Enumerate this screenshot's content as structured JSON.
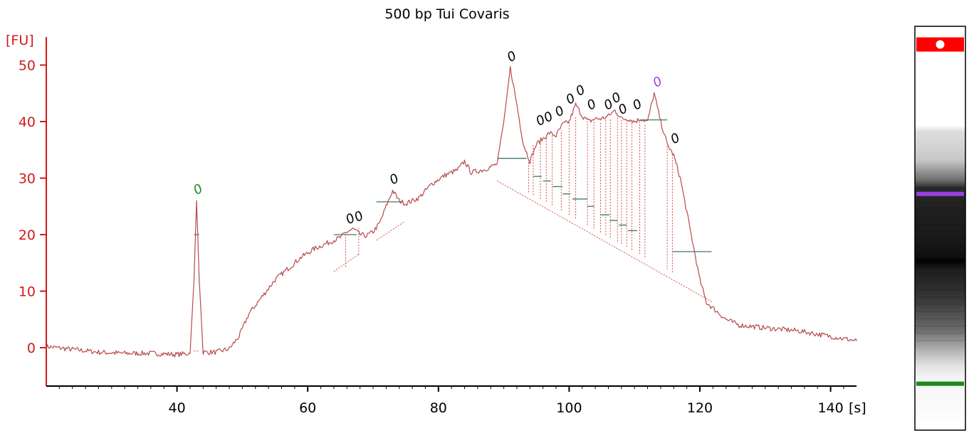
{
  "chart_data": {
    "type": "line",
    "title": "500 bp Tui Covaris",
    "xlabel": "[s]",
    "ylabel": "[FU]",
    "xlim": [
      20,
      144
    ],
    "ylim": [
      -7,
      55
    ],
    "x_ticks": [
      40,
      60,
      80,
      100,
      120,
      140
    ],
    "y_ticks": [
      0,
      10,
      20,
      30,
      40,
      50
    ],
    "grid": false,
    "colors": {
      "trace": "#b64a4a",
      "y_axis": "#d11a1a",
      "x_axis": "#000000",
      "baseline_dotted": "#d84a4a",
      "peak_level": "#3a7a6a",
      "marker_label_low": "#1a8a1a",
      "marker_label_high": "#9b40e0",
      "label_default": "#000000"
    },
    "series": [
      {
        "x": [
          20,
          24,
          28,
          32,
          36,
          40,
          42,
          42.6,
          43.0,
          43.4,
          44,
          46,
          48,
          49.5,
          51,
          53,
          55,
          57,
          59,
          61,
          63,
          65,
          66,
          67,
          68,
          69,
          70,
          71,
          72,
          73,
          74,
          75,
          77,
          79,
          81,
          83,
          84,
          85,
          87,
          89,
          90,
          91,
          92,
          93,
          94,
          95,
          96,
          97,
          98,
          99,
          100,
          101,
          102,
          103,
          104,
          105,
          106,
          107,
          108,
          109,
          110,
          111,
          112,
          113,
          114,
          115,
          116,
          117,
          118,
          119,
          120,
          121,
          122,
          124,
          126,
          130,
          135,
          140,
          144
        ],
        "y": [
          0.2,
          -0.3,
          -0.8,
          -1.0,
          -1.0,
          -1.2,
          -1.0,
          12,
          26,
          12,
          -0.8,
          -0.8,
          -0.2,
          2,
          6,
          9,
          12,
          14,
          16,
          17.5,
          18.5,
          19.5,
          20.5,
          21,
          20,
          19.8,
          20.5,
          22,
          25,
          27.8,
          26,
          25.5,
          26.5,
          29,
          30.5,
          31.5,
          33,
          31,
          31.5,
          32.5,
          40,
          49.5,
          43,
          36,
          33,
          36,
          37,
          38,
          37.5,
          39.5,
          40,
          43,
          41,
          40,
          40.5,
          40.5,
          41,
          42,
          40.5,
          40.5,
          40,
          40.5,
          40,
          45,
          40,
          36,
          34,
          30,
          24,
          18,
          12,
          8,
          7,
          5,
          4,
          3.5,
          3,
          2,
          1.2
        ]
      }
    ],
    "peaks": [
      {
        "x": 43.0,
        "y": 26.0,
        "label": "0",
        "color": "#1a8a1a"
      },
      {
        "x": 66.3,
        "y": 20.8,
        "label": "0",
        "color": "#000000"
      },
      {
        "x": 67.6,
        "y": 21.2,
        "label": "0",
        "color": "#000000"
      },
      {
        "x": 73.0,
        "y": 27.8,
        "label": "0",
        "color": "#000000"
      },
      {
        "x": 91.0,
        "y": 49.5,
        "label": "0",
        "color": "#000000"
      },
      {
        "x": 95.4,
        "y": 38.2,
        "label": "0",
        "color": "#000000"
      },
      {
        "x": 96.6,
        "y": 38.8,
        "label": "0",
        "color": "#000000"
      },
      {
        "x": 98.3,
        "y": 39.8,
        "label": "0",
        "color": "#000000"
      },
      {
        "x": 100.0,
        "y": 42.0,
        "label": "0",
        "color": "#000000"
      },
      {
        "x": 101.5,
        "y": 43.5,
        "label": "0",
        "color": "#000000"
      },
      {
        "x": 103.2,
        "y": 41.0,
        "label": "0",
        "color": "#000000"
      },
      {
        "x": 105.8,
        "y": 41.0,
        "label": "0",
        "color": "#000000"
      },
      {
        "x": 107.0,
        "y": 42.2,
        "label": "0",
        "color": "#000000"
      },
      {
        "x": 108.0,
        "y": 40.2,
        "label": "0",
        "color": "#000000"
      },
      {
        "x": 110.2,
        "y": 41.0,
        "label": "0",
        "color": "#000000"
      },
      {
        "x": 113.3,
        "y": 45.0,
        "label": "0",
        "color": "#9b40e0"
      },
      {
        "x": 116.0,
        "y": 35.0,
        "label": "0",
        "color": "#000000"
      }
    ],
    "peak_levels": [
      {
        "x1": 42.6,
        "x2": 43.4,
        "y": 20
      },
      {
        "x1": 64.0,
        "x2": 67.5,
        "y": 20
      },
      {
        "x1": 70.5,
        "x2": 74.5,
        "y": 25.8
      },
      {
        "x1": 89.0,
        "x2": 93.5,
        "y": 33.5
      },
      {
        "x1": 94.5,
        "x2": 95.8,
        "y": 30.3
      },
      {
        "x1": 96.0,
        "x2": 97.2,
        "y": 29.5
      },
      {
        "x1": 97.5,
        "x2": 99.0,
        "y": 28.5
      },
      {
        "x1": 99.0,
        "x2": 100.2,
        "y": 27.2
      },
      {
        "x1": 100.5,
        "x2": 102.8,
        "y": 26.3
      },
      {
        "x1": 102.8,
        "x2": 103.8,
        "y": 25.0
      },
      {
        "x1": 104.8,
        "x2": 106.2,
        "y": 23.5
      },
      {
        "x1": 106.2,
        "x2": 107.4,
        "y": 22.5
      },
      {
        "x1": 107.6,
        "x2": 108.8,
        "y": 21.7
      },
      {
        "x1": 109.0,
        "x2": 110.4,
        "y": 20.7
      },
      {
        "x1": 110.8,
        "x2": 115.0,
        "y": 40.3
      },
      {
        "x1": 115.8,
        "x2": 121.8,
        "y": 17.0
      }
    ],
    "baseline_segments": [
      {
        "x1": 42.6,
        "y1": -0.6,
        "x2": 43.4,
        "y2": -0.6
      },
      {
        "x1": 64.0,
        "y1": 13.5,
        "x2": 67.8,
        "y2": 16.5
      },
      {
        "x1": 70.5,
        "y1": 19.0,
        "x2": 74.8,
        "y2": 22.3
      },
      {
        "x1": 89.0,
        "y1": 29.5,
        "x2": 122.0,
        "y2": 8.0
      }
    ],
    "drop_lines": [
      {
        "x": 65.8,
        "y_low": 14.3,
        "y_high": 20.5
      },
      {
        "x": 67.8,
        "y_low": 16.5,
        "y_high": 21.2
      },
      {
        "x": 93.8,
        "y_low": 27.5,
        "y_high": 33.5
      },
      {
        "x": 94.5,
        "y_low": 27.0,
        "y_high": 36.0
      },
      {
        "x": 95.6,
        "y_low": 26.3,
        "y_high": 37.0
      },
      {
        "x": 96.5,
        "y_low": 25.8,
        "y_high": 37.5
      },
      {
        "x": 97.4,
        "y_low": 25.2,
        "y_high": 37.5
      },
      {
        "x": 98.8,
        "y_low": 24.3,
        "y_high": 38.5
      },
      {
        "x": 100.0,
        "y_low": 23.5,
        "y_high": 40.0
      },
      {
        "x": 101.0,
        "y_low": 22.9,
        "y_high": 41.0
      },
      {
        "x": 102.8,
        "y_low": 21.7,
        "y_high": 40.5
      },
      {
        "x": 103.8,
        "y_low": 21.1,
        "y_high": 40.0
      },
      {
        "x": 104.8,
        "y_low": 20.4,
        "y_high": 40.0
      },
      {
        "x": 105.6,
        "y_low": 19.9,
        "y_high": 40.3
      },
      {
        "x": 106.3,
        "y_low": 19.5,
        "y_high": 40.5
      },
      {
        "x": 107.4,
        "y_low": 18.8,
        "y_high": 41.5
      },
      {
        "x": 108.0,
        "y_low": 18.4,
        "y_high": 40.5
      },
      {
        "x": 108.8,
        "y_low": 17.9,
        "y_high": 40.5
      },
      {
        "x": 109.6,
        "y_low": 17.3,
        "y_high": 40.3
      },
      {
        "x": 110.8,
        "y_low": 16.6,
        "y_high": 40.0
      },
      {
        "x": 111.6,
        "y_low": 16.0,
        "y_high": 39.5
      },
      {
        "x": 115.0,
        "y_low": 13.8,
        "y_high": 36.0
      },
      {
        "x": 115.8,
        "y_low": 13.3,
        "y_high": 34.5
      }
    ],
    "gel_lane": {
      "markers": [
        {
          "position": 0.045,
          "color": "#ff0000"
        },
        {
          "position": 0.415,
          "color": "#9b40e0"
        },
        {
          "position": 0.885,
          "color": "#1a8a1a"
        }
      ]
    }
  }
}
